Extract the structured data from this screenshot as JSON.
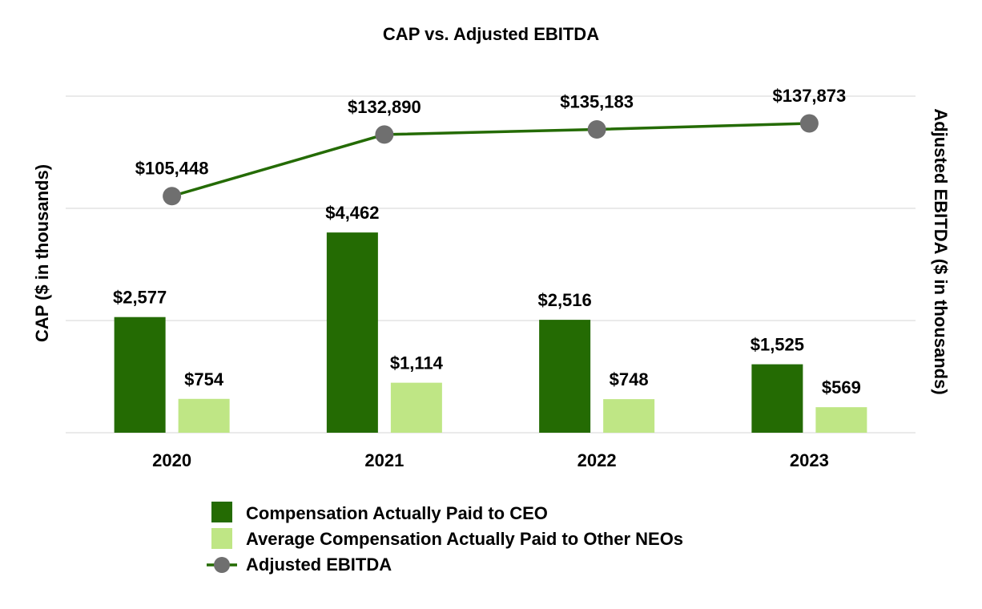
{
  "chart_data": {
    "type": "bar",
    "title": "CAP vs. Adjusted EBITDA",
    "ylabel": "CAP ($ in thousands)",
    "y2label": "Adjusted EBITDA ($ in thousands)",
    "categories": [
      "2020",
      "2021",
      "2022",
      "2023"
    ],
    "ylim": [
      0,
      7500
    ],
    "y2lim": [
      0,
      150000
    ],
    "grid": true,
    "legend_position": "bottom",
    "series": [
      {
        "name": "Compensation Actually Paid to CEO",
        "type": "bar",
        "axis": "left",
        "color": "#246b03",
        "values": [
          2577,
          4462,
          2516,
          1525
        ],
        "labels": [
          "$2,577",
          "$4,462",
          "$2,516",
          "$1,525"
        ]
      },
      {
        "name": "Average Compensation Actually Paid to Other NEOs",
        "type": "bar",
        "axis": "left",
        "color": "#bfe685",
        "values": [
          754,
          1114,
          748,
          569
        ],
        "labels": [
          "$754",
          "$1,114",
          "$748",
          "$569"
        ]
      },
      {
        "name": "Adjusted EBITDA",
        "type": "line",
        "axis": "right",
        "color": "#246b03",
        "marker_color": "#6f6f6f",
        "values": [
          105448,
          132890,
          135183,
          137873
        ],
        "labels": [
          "$105,448",
          "$132,890",
          "$135,183",
          "$137,873"
        ]
      }
    ]
  }
}
